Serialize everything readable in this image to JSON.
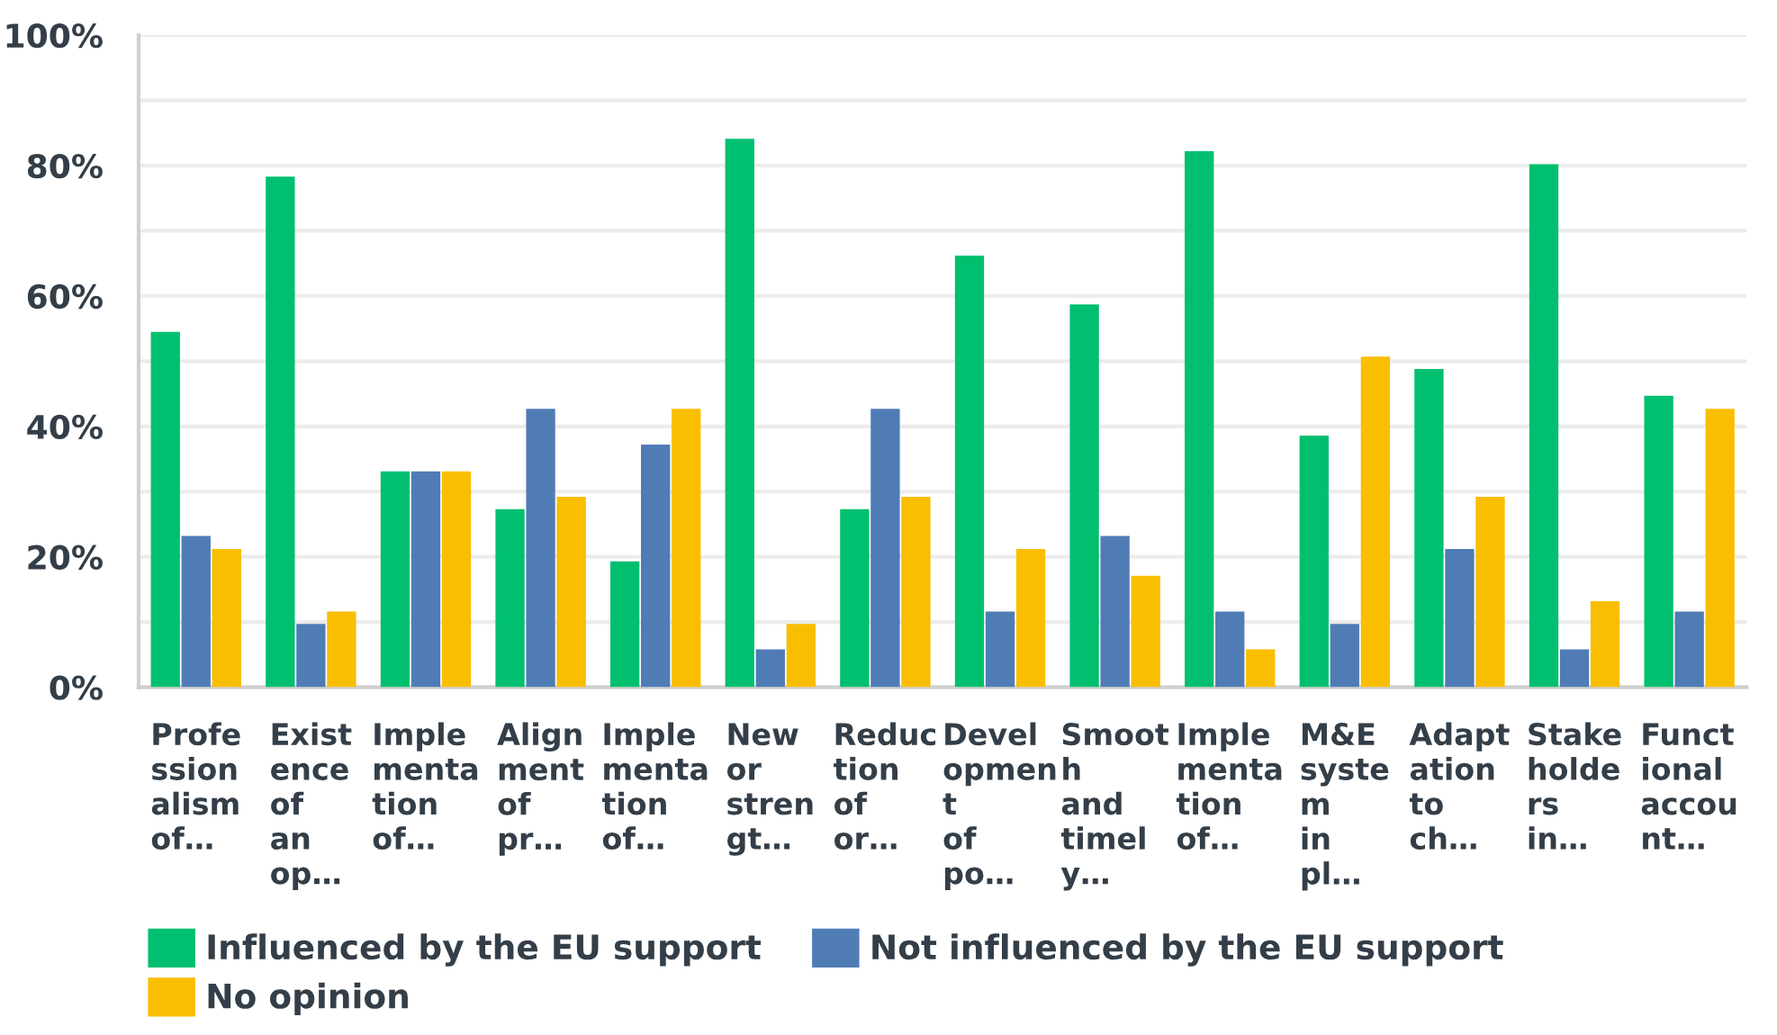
{
  "chart_data": {
    "type": "bar",
    "categories": [
      "Profe\nssion\nalism\nof…",
      "Exist\nence\nof\nan\nop…",
      "Imple\nmenta\ntion\nof…",
      "Align\nment\nof\npr…",
      "Imple\nmenta\ntion\nof…",
      "New\nor\nstren\ngt…",
      "Reduc\ntion\nof\nor…",
      "Devel\nopmen\nt\nof\npo…",
      "Smoot\nh\nand\ntimel\ny…",
      "Imple\nmenta\ntion\nof…",
      "M&E\nsyste\nm\nin\npl…",
      "Adapt\nation\nto\nch…",
      "Stake\nholde\nrs\nin…",
      "Funct\nional\naccou\nnt…"
    ],
    "series": [
      {
        "name": "Influenced by the EU support",
        "color": "#00bf6f",
        "values": [
          54.5,
          78.3,
          33.1,
          27.3,
          19.3,
          84.1,
          27.3,
          66.2,
          58.7,
          82.2,
          38.6,
          48.8,
          80.2,
          44.7
        ]
      },
      {
        "name": "Not influenced by the EU support",
        "color": "#507cb6",
        "values": [
          23.2,
          9.7,
          33.1,
          42.7,
          37.2,
          5.8,
          42.7,
          11.6,
          23.2,
          11.6,
          9.7,
          21.2,
          5.8,
          11.6
        ]
      },
      {
        "name": "No opinion",
        "color": "#f9be00",
        "values": [
          21.2,
          11.6,
          33.1,
          29.2,
          42.7,
          9.7,
          29.2,
          21.2,
          17.1,
          5.8,
          50.7,
          29.2,
          13.2,
          42.7
        ]
      }
    ],
    "ylim": [
      0,
      100
    ],
    "yticks": [
      {
        "value": 0,
        "label": "0%"
      },
      {
        "value": 10,
        "label": null
      },
      {
        "value": 20,
        "label": "20%"
      },
      {
        "value": 30,
        "label": null
      },
      {
        "value": 40,
        "label": "40%"
      },
      {
        "value": 50,
        "label": null
      },
      {
        "value": 60,
        "label": "60%"
      },
      {
        "value": 70,
        "label": null
      },
      {
        "value": 80,
        "label": "80%"
      },
      {
        "value": 90,
        "label": null
      },
      {
        "value": 100,
        "label": "100%"
      }
    ],
    "grid": "y",
    "legend": "bottom left"
  }
}
